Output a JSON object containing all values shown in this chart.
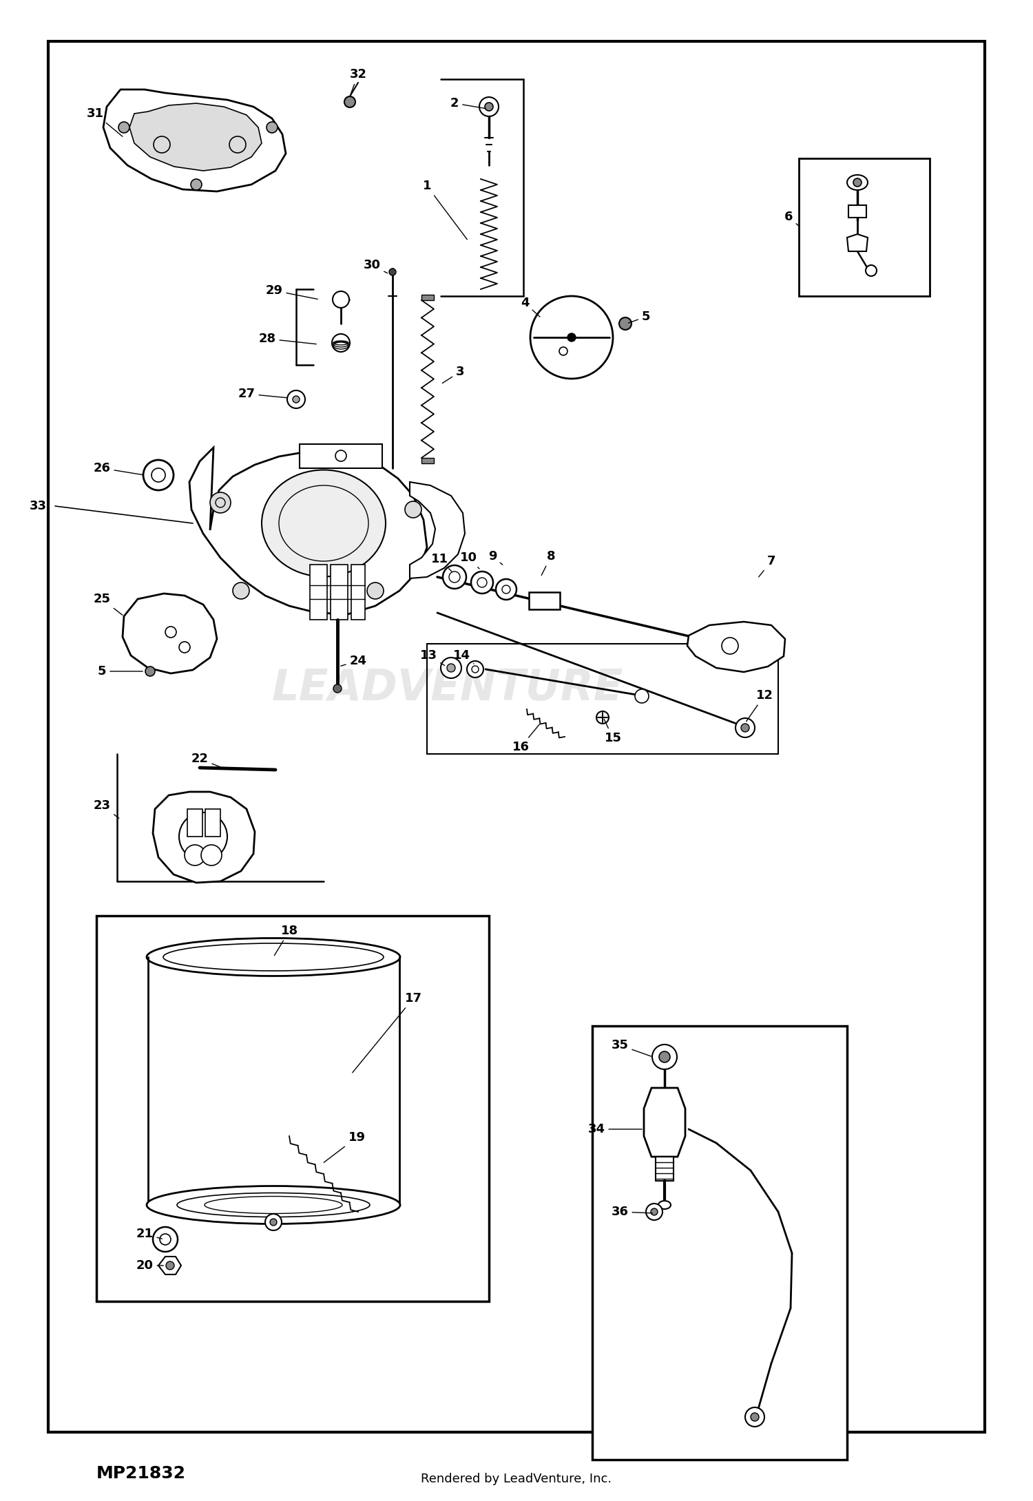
{
  "bg_color": "#ffffff",
  "border_color": "#000000",
  "footer_left": "MP21832",
  "footer_right": "Rendered by LeadVenture, Inc.",
  "watermark": "LEADVENTURE",
  "fig_width": 15.0,
  "fig_height": 21.8,
  "dpi": 100
}
